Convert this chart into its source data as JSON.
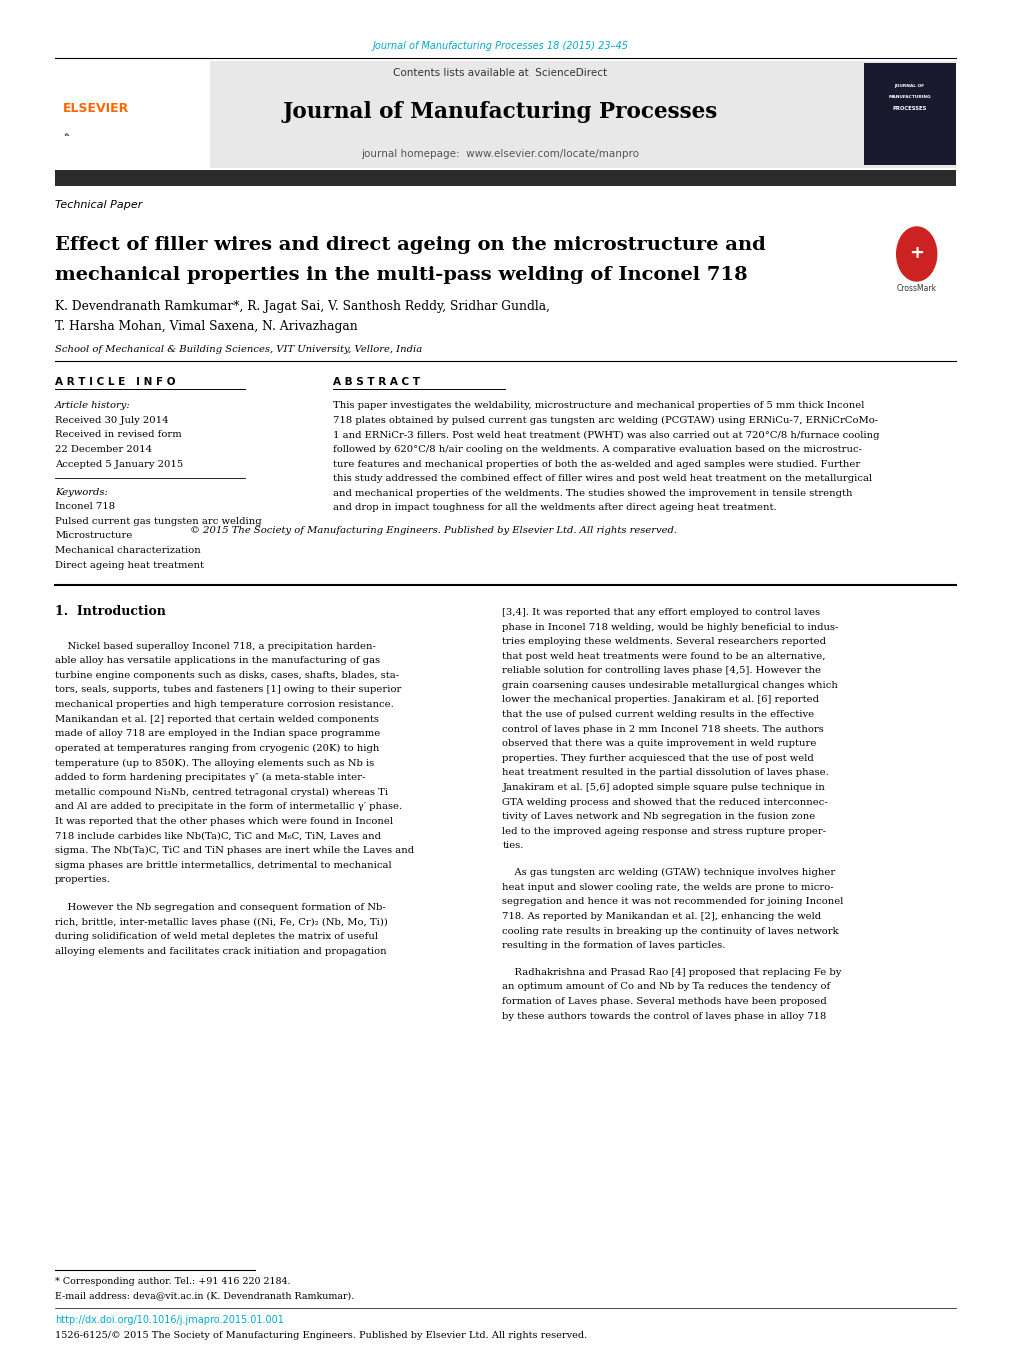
{
  "page_width": 10.2,
  "page_height": 13.51,
  "bg_color": "#ffffff",
  "journal_ref": "Journal of Manufacturing Processes 18 (2015) 23–45",
  "journal_ref_color": "#00aacc",
  "header_bg": "#e8e8e8",
  "journal_name": "Journal of Manufacturing Processes",
  "contents_text": "Contents lists available at ",
  "sciencedirect_text": "ScienceDirect",
  "sciencedirect_color": "#00aacc",
  "journal_homepage_text": "journal homepage: ",
  "journal_homepage_url": "www.elsevier.com/locate/manpro",
  "journal_homepage_url_color": "#00aacc",
  "elsevier_color": "#ff6600",
  "dark_bar_color": "#2b2b2b",
  "paper_type": "Technical Paper",
  "title_line1": "Effect of filler wires and direct ageing on the microstructure and",
  "title_line2": "mechanical properties in the multi-pass welding of Inconel 718",
  "authors_line1": "K. Devendranath Ramkumar*, R. Jagat Sai, V. Santhosh Reddy, Sridhar Gundla,",
  "authors_line2": "T. Harsha Mohan, Vimal Saxena, N. Arivazhagan",
  "affiliation": "School of Mechanical & Building Sciences, VIT University, Vellore, India",
  "article_info_title": "A R T I C L E   I N F O",
  "abstract_title": "A B S T R A C T",
  "article_history_label": "Article history:",
  "received_1": "Received 30 July 2014",
  "received_rev": "Received in revised form",
  "received_rev_date": "22 December 2014",
  "accepted": "Accepted 5 January 2015",
  "keywords_label": "Keywords:",
  "keyword1": "Inconel 718",
  "keyword2": "Pulsed current gas tungsten arc welding",
  "keyword3": "Microstructure",
  "keyword4": "Mechanical characterization",
  "keyword5": "Direct ageing heat treatment",
  "copyright_text": "© 2015 The Society of Manufacturing Engineers. Published by Elsevier Ltd. All rights reserved.",
  "intro_heading": "1.  Introduction",
  "footnote_text": "* Corresponding author. Tel.: +91 416 220 2184.",
  "footnote_email": "E-mail address: deva@vit.ac.in (K. Devendranath Ramkumar).",
  "doi_text": "http://dx.doi.org/10.1016/j.jmapro.2015.01.001",
  "issn_text": "1526-6125/© 2015 The Society of Manufacturing Engineers. Published by Elsevier Ltd. All rights reserved."
}
